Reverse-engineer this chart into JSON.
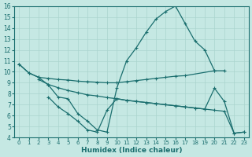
{
  "xlabel": "Humidex (Indice chaleur)",
  "bg_color": "#c5e8e3",
  "grid_color": "#aad4ce",
  "line_color": "#1a6e6e",
  "xlim": [
    -0.5,
    23.5
  ],
  "ylim": [
    4,
    16
  ],
  "xticks": [
    0,
    1,
    2,
    3,
    4,
    5,
    6,
    7,
    8,
    9,
    10,
    11,
    12,
    13,
    14,
    15,
    16,
    17,
    18,
    19,
    20,
    21,
    22,
    23
  ],
  "yticks": [
    4,
    5,
    6,
    7,
    8,
    9,
    10,
    11,
    12,
    13,
    14,
    15,
    16
  ],
  "line1_x": [
    0,
    1,
    2,
    3,
    4,
    5,
    6,
    7,
    8,
    9,
    10,
    11,
    12,
    13,
    14,
    15,
    16,
    17,
    20
  ],
  "line1_y": [
    10.7,
    9.9,
    9.5,
    9.4,
    9.3,
    9.25,
    9.15,
    9.1,
    9.05,
    9.0,
    9.0,
    9.1,
    9.2,
    9.3,
    9.4,
    9.5,
    9.6,
    9.65,
    10.1
  ],
  "line2_x": [
    0,
    1,
    2,
    3,
    4,
    5,
    6,
    7,
    8,
    9,
    10,
    11,
    12,
    13,
    14,
    15,
    16,
    17,
    18,
    19,
    20,
    21
  ],
  "line2_y": [
    10.7,
    9.9,
    9.5,
    8.8,
    7.7,
    7.55,
    6.2,
    5.5,
    4.7,
    4.5,
    8.5,
    11.0,
    12.2,
    13.6,
    14.8,
    15.5,
    16.0,
    14.4,
    12.8,
    12.0,
    10.1,
    10.1
  ],
  "line3_x": [
    2,
    3,
    4,
    5,
    6,
    7,
    8,
    9,
    10,
    11,
    12,
    13,
    14,
    15,
    16,
    17,
    18,
    19,
    20,
    21,
    22,
    23
  ],
  "line3_y": [
    9.3,
    8.85,
    8.55,
    8.3,
    8.1,
    7.9,
    7.8,
    7.65,
    7.55,
    7.4,
    7.3,
    7.2,
    7.1,
    7.0,
    6.9,
    6.8,
    6.7,
    6.6,
    8.5,
    7.3,
    4.4,
    4.5
  ],
  "line4_x": [
    3,
    4,
    5,
    6,
    7,
    8,
    9,
    10,
    11,
    12,
    13,
    14,
    15,
    16,
    17,
    18,
    19,
    20,
    21,
    22,
    23
  ],
  "line4_y": [
    7.7,
    6.8,
    6.2,
    5.5,
    4.7,
    4.5,
    6.5,
    7.55,
    7.4,
    7.3,
    7.2,
    7.1,
    7.0,
    6.9,
    6.8,
    6.7,
    6.6,
    6.5,
    6.4,
    4.4,
    4.5
  ],
  "marker": "+",
  "markersize": 3.5,
  "linewidth": 0.9
}
